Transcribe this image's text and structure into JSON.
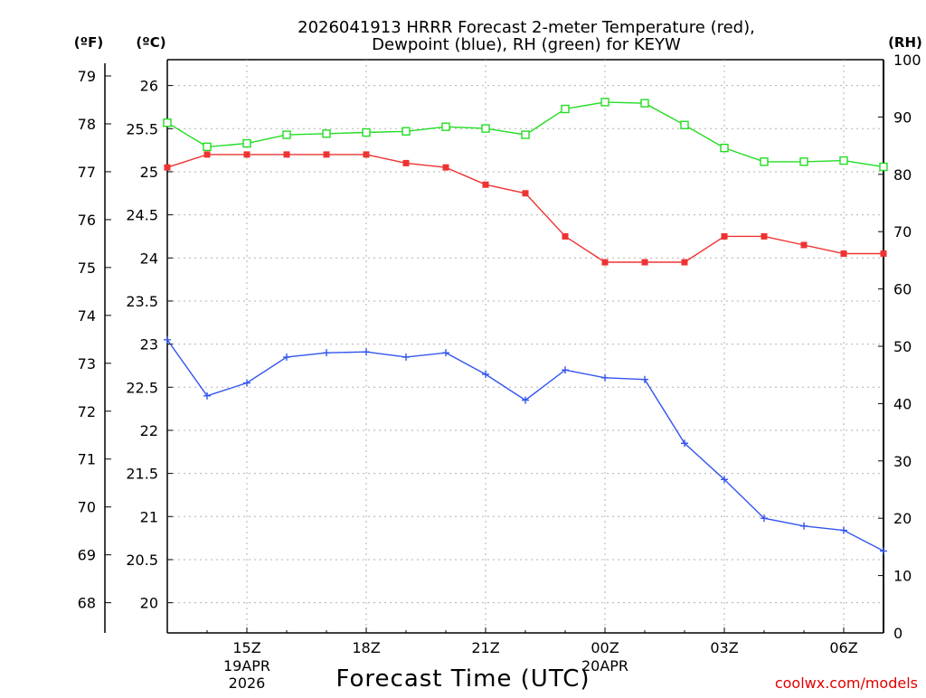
{
  "chart_data": {
    "type": "line",
    "title_lines": [
      "2026041913 HRRR Forecast 2-meter Temperature (red),",
      "Dewpoint (blue), RH (green) for KEYW"
    ],
    "units": {
      "fahrenheit": "(ºF)",
      "celsius": "(ºC)",
      "rh": "(RH)"
    },
    "xlabel": "Forecast Time (UTC)",
    "credit": "coolwx.com/models",
    "x_hours": [
      13,
      14,
      15,
      16,
      17,
      18,
      19,
      20,
      21,
      22,
      23,
      24,
      25,
      26,
      27,
      28,
      29,
      30,
      31
    ],
    "xlim": [
      13,
      31
    ],
    "x_ticks": [
      {
        "hour": 15,
        "label": "15Z"
      },
      {
        "hour": 18,
        "label": "18Z"
      },
      {
        "hour": 21,
        "label": "21Z"
      },
      {
        "hour": 24,
        "label": "00Z"
      },
      {
        "hour": 27,
        "label": "03Z"
      },
      {
        "hour": 30,
        "label": "06Z"
      }
    ],
    "date_labels": [
      {
        "hour": 15,
        "lines": [
          "19APR",
          "2026"
        ]
      },
      {
        "hour": 24,
        "lines": [
          "20APR"
        ]
      }
    ],
    "celsius_axis": {
      "lim": [
        19.65,
        26.3
      ],
      "ticks": [
        "20",
        "20.5",
        "21",
        "21.5",
        "22",
        "22.5",
        "23",
        "23.5",
        "24",
        "24.5",
        "25",
        "25.5",
        "26"
      ]
    },
    "fahrenheit_axis": {
      "ticks": [
        "68",
        "69",
        "70",
        "71",
        "72",
        "73",
        "74",
        "75",
        "76",
        "77",
        "78",
        "79"
      ]
    },
    "rh_axis": {
      "lim": [
        0,
        100
      ],
      "ticks": [
        "0",
        "10",
        "20",
        "30",
        "40",
        "50",
        "60",
        "70",
        "80",
        "90",
        "100"
      ]
    },
    "series": [
      {
        "name": "Temperature",
        "units": "°C",
        "axis": "celsius",
        "color": "#ee3333",
        "marker": "filled-square",
        "values": [
          25.05,
          25.2,
          25.2,
          25.2,
          25.2,
          25.2,
          25.1,
          25.05,
          24.85,
          24.75,
          24.25,
          23.95,
          23.95,
          23.95,
          24.25,
          24.25,
          24.15,
          24.05,
          24.05
        ]
      },
      {
        "name": "Dewpoint",
        "units": "°C",
        "axis": "celsius",
        "color": "#3355ee",
        "marker": "plus",
        "values": [
          23.05,
          22.4,
          22.55,
          22.85,
          22.9,
          22.91,
          22.85,
          22.9,
          22.65,
          22.35,
          22.7,
          22.61,
          22.59,
          21.85,
          21.43,
          20.98,
          20.89,
          20.84,
          20.6
        ]
      },
      {
        "name": "RH",
        "units": "%",
        "axis": "rh",
        "color": "#22dd22",
        "marker": "open-square",
        "values": [
          89,
          84.8,
          85.4,
          86.9,
          87.1,
          87.3,
          87.5,
          88.3,
          88.0,
          86.9,
          91.4,
          92.6,
          92.4,
          88.6,
          84.6,
          82.2,
          82.2,
          82.4,
          81.3
        ]
      }
    ]
  }
}
